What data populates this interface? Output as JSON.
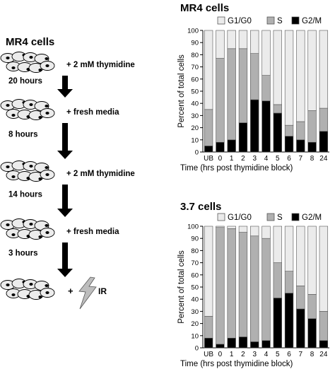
{
  "protocol": {
    "title": "MR4 cells",
    "steps": [
      {
        "label": "+ 2 mM thymidine",
        "interval_after": "20 hours"
      },
      {
        "label": "+ fresh media",
        "interval_after": "8 hours"
      },
      {
        "label": "+ 2 mM thymidine",
        "interval_after": "14 hours"
      },
      {
        "label": "+ fresh media",
        "interval_after": "3 hours"
      },
      {
        "label_plus": "+",
        "label_ir": "IR",
        "interval_after": null
      }
    ]
  },
  "chart_data": [
    {
      "type": "bar",
      "stacked": true,
      "title": "MR4 cells",
      "ylabel": "Percent of total cells",
      "xlabel": "Time (hrs post thymidine block)",
      "ylim": [
        0,
        100
      ],
      "yticks": [
        0,
        10,
        20,
        30,
        40,
        50,
        60,
        70,
        80,
        90,
        100
      ],
      "categories": [
        "UB",
        "0",
        "1",
        "2",
        "3",
        "4",
        "5",
        "6",
        "7",
        "8",
        "24"
      ],
      "legend_position": "top",
      "series": [
        {
          "name": "G2/M",
          "color": "#000000",
          "values": [
            5,
            8,
            10,
            24,
            43,
            42,
            32,
            13,
            10,
            8,
            17
          ]
        },
        {
          "name": "S",
          "color": "#b0b0b0",
          "values": [
            30,
            69,
            75,
            61,
            38,
            21,
            7,
            9,
            15,
            26,
            19
          ]
        },
        {
          "name": "G1/G0",
          "color": "#ebebeb",
          "values": [
            65,
            23,
            15,
            15,
            19,
            37,
            61,
            78,
            75,
            66,
            64
          ]
        }
      ]
    },
    {
      "type": "bar",
      "stacked": true,
      "title": "3.7 cells",
      "ylabel": "Percent of total cells",
      "xlabel": "Time (hrs post thymidine block)",
      "ylim": [
        0,
        100
      ],
      "yticks": [
        0,
        10,
        20,
        30,
        40,
        50,
        60,
        70,
        80,
        90,
        100
      ],
      "categories": [
        "UB",
        "0",
        "1",
        "2",
        "3",
        "4",
        "5",
        "6",
        "7",
        "8",
        "24"
      ],
      "legend_position": "top",
      "series": [
        {
          "name": "G2/M",
          "color": "#000000",
          "values": [
            8,
            3,
            8,
            9,
            5,
            6,
            41,
            45,
            32,
            24,
            6
          ]
        },
        {
          "name": "S",
          "color": "#b0b0b0",
          "values": [
            18,
            96,
            90,
            86,
            87,
            84,
            29,
            18,
            19,
            20,
            24
          ]
        },
        {
          "name": "G1/G0",
          "color": "#ebebeb",
          "values": [
            74,
            1,
            2,
            5,
            8,
            10,
            30,
            37,
            49,
            56,
            70
          ]
        }
      ]
    }
  ]
}
